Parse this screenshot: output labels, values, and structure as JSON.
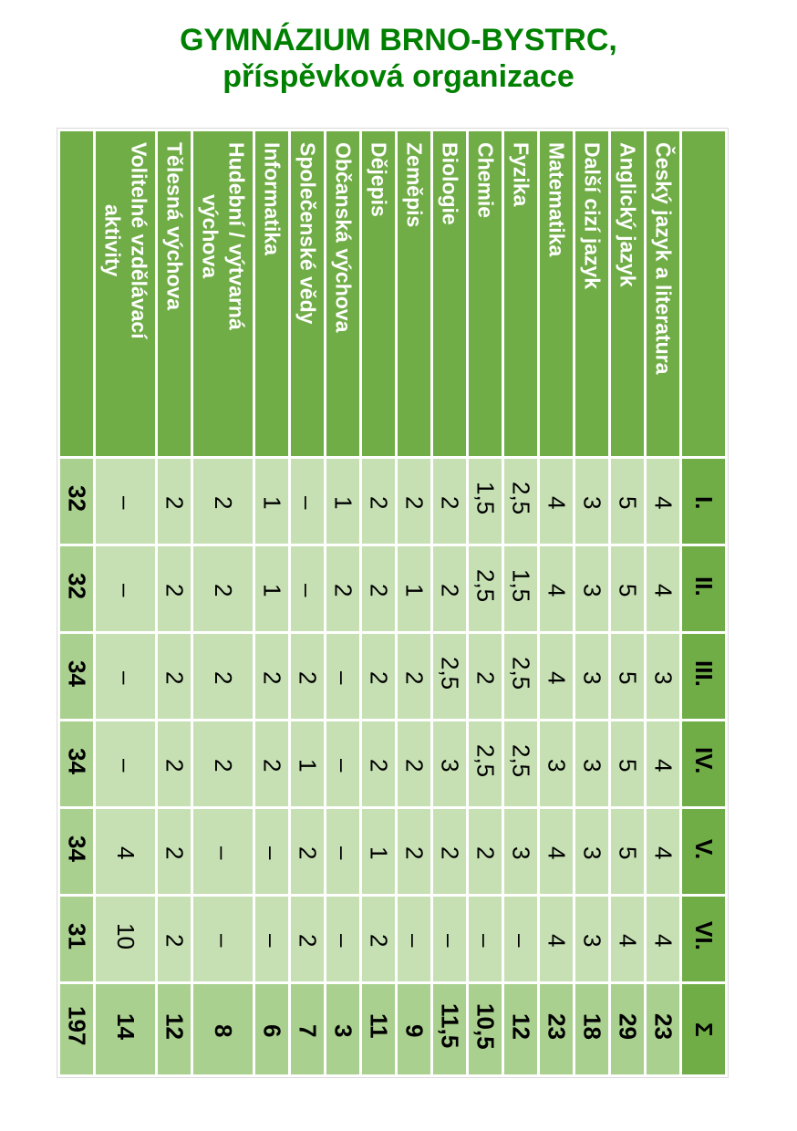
{
  "title": {
    "line1": "GYMNÁZIUM BRNO-BYSTRC,",
    "line2": "příspěvková organizace"
  },
  "table": {
    "sigma_label": "Σ",
    "classes": [
      "I.",
      "II.",
      "III.",
      "IV.",
      "V.",
      "VI."
    ],
    "class_totals": [
      "32",
      "32",
      "34",
      "34",
      "34",
      "31"
    ],
    "grand_total": "197",
    "subjects": [
      {
        "name": "Český jazyk a literatura",
        "values": [
          "4",
          "4",
          "3",
          "4",
          "4",
          "4"
        ],
        "sum": "23"
      },
      {
        "name": "Anglický jazyk",
        "values": [
          "5",
          "5",
          "5",
          "5",
          "5",
          "4"
        ],
        "sum": "29"
      },
      {
        "name": "Další cizí jazyk",
        "values": [
          "3",
          "3",
          "3",
          "3",
          "3",
          "3"
        ],
        "sum": "18"
      },
      {
        "name": "Matematika",
        "values": [
          "4",
          "4",
          "4",
          "3",
          "4",
          "4"
        ],
        "sum": "23"
      },
      {
        "name": "Fyzika",
        "values": [
          "2,5",
          "1,5",
          "2,5",
          "2,5",
          "3",
          "–"
        ],
        "sum": "12"
      },
      {
        "name": "Chemie",
        "values": [
          "1,5",
          "2,5",
          "2",
          "2,5",
          "2",
          "–"
        ],
        "sum": "10,5"
      },
      {
        "name": "Biologie",
        "values": [
          "2",
          "2",
          "2,5",
          "3",
          "2",
          "–"
        ],
        "sum": "11,5"
      },
      {
        "name": "Zeměpis",
        "values": [
          "2",
          "1",
          "2",
          "2",
          "2",
          "–"
        ],
        "sum": "9"
      },
      {
        "name": "Dějepis",
        "values": [
          "2",
          "2",
          "2",
          "2",
          "1",
          "2"
        ],
        "sum": "11"
      },
      {
        "name": "Občanská výchova",
        "values": [
          "1",
          "2",
          "–",
          "–",
          "–",
          "–"
        ],
        "sum": "3"
      },
      {
        "name": "Společenské vědy",
        "values": [
          "–",
          "–",
          "2",
          "1",
          "2",
          "2"
        ],
        "sum": "7"
      },
      {
        "name": "Informatika",
        "values": [
          "1",
          "1",
          "2",
          "2",
          "–",
          "–"
        ],
        "sum": "6"
      },
      {
        "name": "Hudební / výtvarná\nvýchova",
        "values": [
          "2",
          "2",
          "2",
          "2",
          "–",
          "–"
        ],
        "sum": "8",
        "wide": true
      },
      {
        "name": "Tělesná výchova",
        "values": [
          "2",
          "2",
          "2",
          "2",
          "2",
          "2"
        ],
        "sum": "12"
      },
      {
        "name": "Volitelné vzdělávací\naktivity",
        "values": [
          "–",
          "–",
          "–",
          "–",
          "4",
          "10"
        ],
        "sum": "14",
        "wide": true
      }
    ],
    "colors": {
      "header_green": "#70AD47",
      "total_green": "#A9D08E",
      "cell_green": "#C6E0B4",
      "title_green": "#008000",
      "header_text": "#FFFFFF",
      "cell_text": "#000000"
    }
  }
}
